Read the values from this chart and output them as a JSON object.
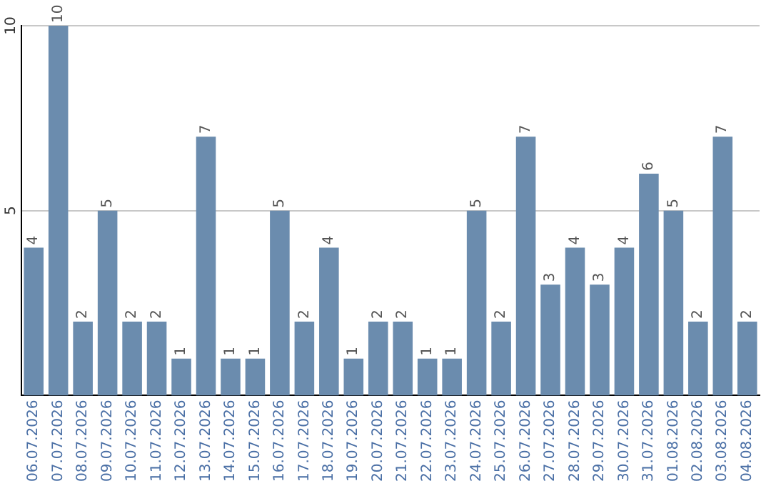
{
  "chart_data": {
    "type": "bar",
    "categories": [
      "06.07.2026",
      "07.07.2026",
      "08.07.2026",
      "09.07.2026",
      "10.07.2026",
      "11.07.2026",
      "12.07.2026",
      "13.07.2026",
      "14.07.2026",
      "15.07.2026",
      "16.07.2026",
      "17.07.2026",
      "18.07.2026",
      "19.07.2026",
      "20.07.2026",
      "21.07.2026",
      "22.07.2026",
      "23.07.2026",
      "24.07.2026",
      "25.07.2026",
      "26.07.2026",
      "27.07.2026",
      "28.07.2026",
      "29.07.2026",
      "30.07.2026",
      "31.07.2026",
      "01.08.2026",
      "02.08.2026",
      "03.08.2026",
      "04.08.2026"
    ],
    "values": [
      4,
      10,
      2,
      5,
      2,
      2,
      1,
      7,
      1,
      1,
      5,
      2,
      4,
      1,
      2,
      2,
      1,
      1,
      5,
      2,
      7,
      3,
      4,
      3,
      4,
      6,
      5,
      2,
      7,
      2
    ],
    "color": "#6b8cae",
    "ylim": [
      0,
      10
    ],
    "yticks": [
      5,
      10
    ],
    "grid": "y",
    "legend": false,
    "data_labels": true
  }
}
